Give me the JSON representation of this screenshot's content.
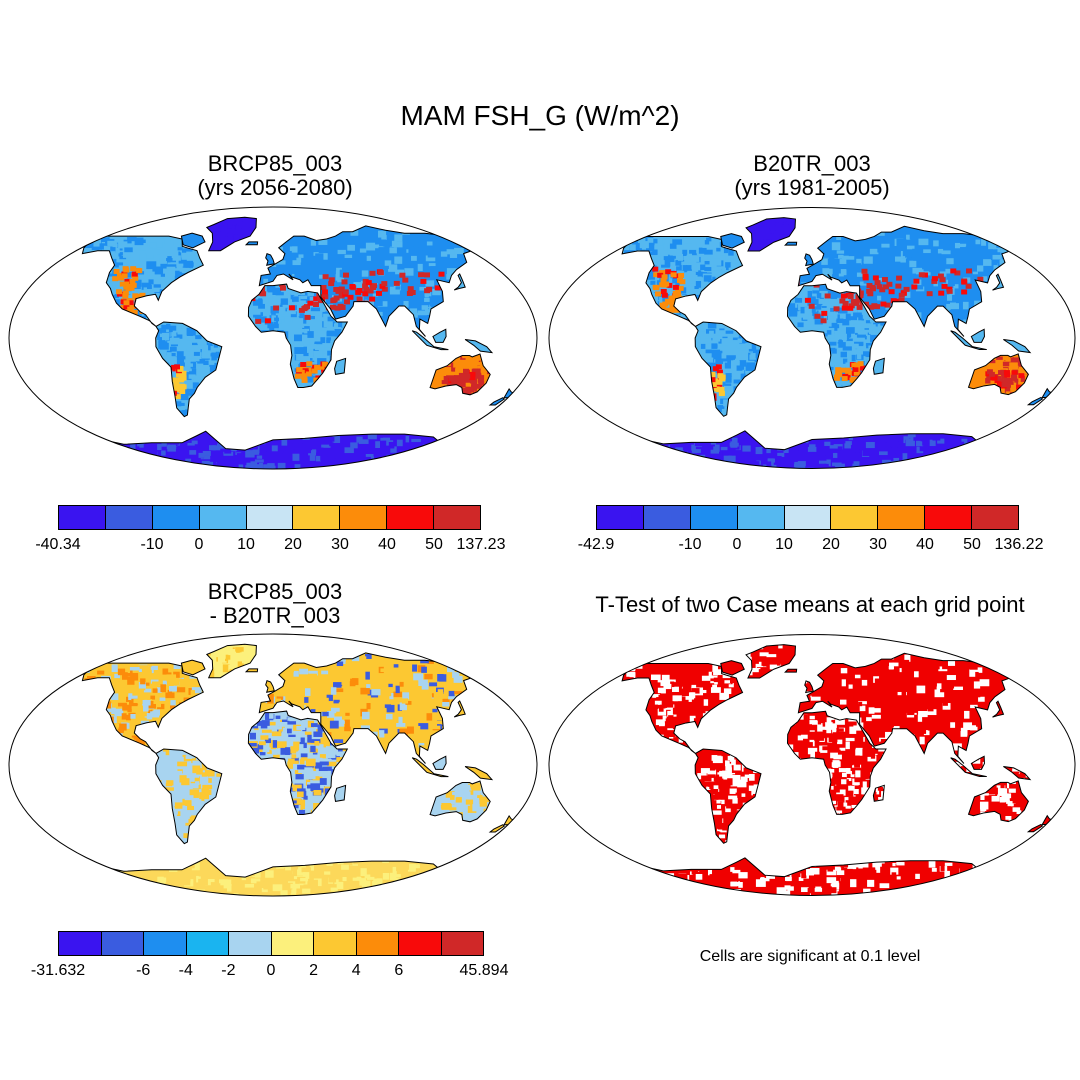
{
  "title": "MAM FSH_G (W/m^2)",
  "panels": [
    {
      "title_line1": "BRCP85_003",
      "title_line2": "(yrs 2056-2080)"
    },
    {
      "title_line1": "B20TR_003",
      "title_line2": "(yrs 1981-2005)"
    },
    {
      "title_line1": "BRCP85_003",
      "title_line2": "- B20TR_003"
    },
    {
      "title_line1": "T-Test of two Case means at each grid point",
      "title_line2": ""
    }
  ],
  "colorbars": [
    {
      "colors": [
        "#3a14f0",
        "#3a5ce0",
        "#1e8ef0",
        "#55b8f0",
        "#c8e4f4",
        "#fcc832",
        "#fc8c0a",
        "#f80a0a",
        "#d02828"
      ],
      "labels": [
        "-40.34",
        "-10",
        "0",
        "10",
        "20",
        "30",
        "40",
        "50",
        "137.23"
      ],
      "label_boundaries": [
        0,
        2,
        3,
        4,
        5,
        6,
        7,
        8,
        9
      ]
    },
    {
      "colors": [
        "#3a14f0",
        "#3a5ce0",
        "#1e8ef0",
        "#55b8f0",
        "#c8e4f4",
        "#fcc832",
        "#fc8c0a",
        "#f80a0a",
        "#d02828"
      ],
      "labels": [
        "-42.9",
        "-10",
        "0",
        "10",
        "20",
        "30",
        "40",
        "50",
        "136.22"
      ],
      "label_boundaries": [
        0,
        2,
        3,
        4,
        5,
        6,
        7,
        8,
        9
      ]
    },
    {
      "colors": [
        "#3a14f0",
        "#3a5ce0",
        "#1e8ef0",
        "#1ab4f0",
        "#a8d4f0",
        "#fcf07c",
        "#fcc832",
        "#fc8c0a",
        "#f80a0a",
        "#d02828"
      ],
      "labels": [
        "-31.632",
        "-6",
        "-4",
        "-2",
        "0",
        "2",
        "4",
        "6",
        "45.894"
      ],
      "label_boundaries": [
        0,
        2,
        3,
        4,
        5,
        6,
        7,
        8,
        10
      ]
    }
  ],
  "note": "Cells are significant at 0.1 level",
  "palette": {
    "ocean": "#ffffff",
    "outline": "#000000",
    "significant": "#f00000",
    "antarctica_abs": "#3a14f0",
    "antarctica_diff": "#fcd85a"
  }
}
